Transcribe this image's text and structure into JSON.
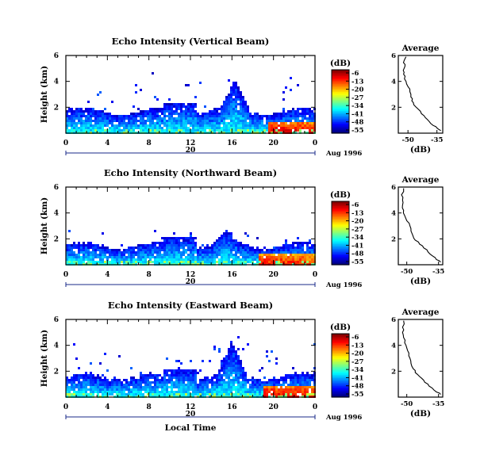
{
  "chart_data": [
    {
      "type": "heatmap",
      "title": "Echo Intensity (Vertical Beam)",
      "ylabel": "Height (km)",
      "xticks": [
        "0",
        "4",
        "8",
        "12",
        "16",
        "20",
        "0"
      ],
      "xlim": [
        0,
        24
      ],
      "yticks": [
        "2",
        "4",
        "6"
      ],
      "ylim": [
        0,
        6
      ],
      "date_labels": [
        "20"
      ],
      "date_suffix": "Aug 1996",
      "colorbar": {
        "unit": "(dB)",
        "ticks": [
          "-6",
          "-13",
          "-20",
          "-27",
          "-34",
          "-41",
          "-48",
          "-55"
        ]
      },
      "profile": {
        "title": "Average",
        "xlabel": "(dB)",
        "xticks": [
          "-50",
          "-35"
        ],
        "xlim": [
          -55,
          -32
        ],
        "yticks": [
          "2",
          "4",
          "6"
        ],
        "ylim": [
          0,
          6
        ],
        "x": [
          -33,
          -35,
          -37,
          -39,
          -41,
          -43,
          -45,
          -47,
          -48,
          -48.5,
          -49,
          -50,
          -51,
          -51.5,
          -52,
          -52,
          -51.5,
          -52,
          -51
        ],
        "y": [
          0.2,
          0.4,
          0.6,
          0.9,
          1.2,
          1.5,
          1.9,
          2.2,
          2.5,
          2.8,
          3.2,
          3.6,
          4.0,
          4.4,
          4.7,
          5.0,
          5.3,
          5.6,
          5.9
        ]
      },
      "echo": {
        "base_top": 1.7,
        "bump_time": 16.3,
        "bump_top": 4.2,
        "hot_start": 19.5,
        "hot_max": -10,
        "scatter_top": 5.0
      }
    },
    {
      "type": "heatmap",
      "title": "Echo Intensity (Northward Beam)",
      "ylabel": "Height (km)",
      "xticks": [
        "0",
        "4",
        "8",
        "12",
        "16",
        "20",
        "0"
      ],
      "xlim": [
        0,
        24
      ],
      "yticks": [
        "2",
        "4",
        "6"
      ],
      "ylim": [
        0,
        6
      ],
      "date_labels": [
        "20"
      ],
      "date_suffix": "Aug 1996",
      "colorbar": {
        "unit": "(dB)",
        "ticks": [
          "-6",
          "-13",
          "-20",
          "-27",
          "-34",
          "-41",
          "-48",
          "-55"
        ]
      },
      "profile": {
        "title": "Average",
        "xlabel": "(dB)",
        "xticks": [
          "-50",
          "-35"
        ],
        "xlim": [
          -54,
          -33
        ],
        "yticks": [
          "2",
          "4",
          "6"
        ],
        "ylim": [
          0,
          6
        ],
        "x": [
          -34,
          -36,
          -38,
          -40,
          -42,
          -44,
          -46,
          -47,
          -48,
          -48.5,
          -50,
          -51,
          -51.5,
          -52,
          -52,
          -52.5,
          -51.5
        ],
        "y": [
          0.2,
          0.4,
          0.7,
          1.0,
          1.3,
          1.6,
          1.9,
          2.2,
          2.6,
          3.0,
          3.4,
          3.8,
          4.2,
          4.6,
          5.0,
          5.4,
          5.9
        ]
      },
      "echo": {
        "base_top": 1.5,
        "bump_time": 15.5,
        "bump_top": 2.8,
        "hot_start": 18.5,
        "hot_max": -12,
        "scatter_top": 2.8
      }
    },
    {
      "type": "heatmap",
      "title": "Echo Intensity (Eastward Beam)",
      "ylabel": "Height (km)",
      "xlabel": "Local Time",
      "xticks": [
        "0",
        "4",
        "8",
        "12",
        "16",
        "20",
        "0"
      ],
      "xlim": [
        0,
        24
      ],
      "yticks": [
        "2",
        "4",
        "6"
      ],
      "ylim": [
        0,
        6
      ],
      "date_labels": [
        "20"
      ],
      "date_suffix": "Aug 1996",
      "colorbar": {
        "unit": "(dB)",
        "ticks": [
          "-6",
          "-13",
          "-20",
          "-27",
          "-34",
          "-41",
          "-48",
          "-55"
        ]
      },
      "profile": {
        "title": "Average",
        "xlabel": "(dB)",
        "xticks": [
          "-50",
          "-35"
        ],
        "xlim": [
          -54,
          -33
        ],
        "yticks": [
          "2",
          "4",
          "6"
        ],
        "ylim": [
          0,
          6
        ],
        "x": [
          -34,
          -36,
          -38,
          -40,
          -42,
          -44,
          -46,
          -47,
          -48,
          -48.5,
          -49,
          -50,
          -51,
          -51.5,
          -52,
          -52,
          -51.5
        ],
        "y": [
          0.2,
          0.4,
          0.7,
          1.0,
          1.3,
          1.6,
          1.9,
          2.2,
          2.6,
          3.0,
          3.4,
          3.8,
          4.2,
          4.6,
          5.0,
          5.4,
          5.9
        ]
      },
      "echo": {
        "base_top": 1.6,
        "bump_time": 16.0,
        "bump_top": 4.4,
        "hot_start": 19.0,
        "hot_max": -10,
        "scatter_top": 5.3
      }
    }
  ]
}
